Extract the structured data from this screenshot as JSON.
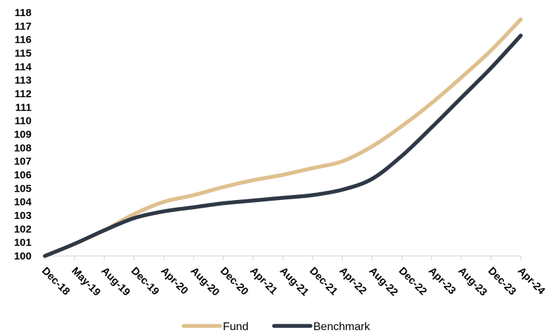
{
  "chart_data": {
    "type": "line",
    "title": "",
    "xlabel": "",
    "ylabel": "",
    "ylim": [
      100,
      118
    ],
    "yticks": [
      "100",
      "101",
      "102",
      "103",
      "104",
      "105",
      "106",
      "107",
      "108",
      "109",
      "110",
      "111",
      "112",
      "113",
      "114",
      "115",
      "116",
      "117",
      "118"
    ],
    "categories": [
      "Dec-18",
      "May-19",
      "Aug-19",
      "Dec-19",
      "Apr-20",
      "Aug-20",
      "Dec-20",
      "Apr-21",
      "Aug-21",
      "Dec-21",
      "Apr-22",
      "Aug-22",
      "Dec-22",
      "Apr-23",
      "Aug-23",
      "Dec-23",
      "Apr-24"
    ],
    "grid": false,
    "legend_position": "bottom",
    "series": [
      {
        "name": "Fund",
        "color": "#dfc08e",
        "values": [
          100.0,
          100.9,
          101.9,
          103.1,
          104.0,
          104.5,
          105.1,
          105.6,
          106.0,
          106.5,
          107.0,
          108.1,
          109.6,
          111.3,
          113.2,
          115.2,
          117.5
        ]
      },
      {
        "name": "Benchmark",
        "color": "#2e3846",
        "values": [
          100.0,
          100.9,
          101.9,
          102.8,
          103.3,
          103.6,
          103.9,
          104.1,
          104.3,
          104.5,
          104.9,
          105.7,
          107.4,
          109.5,
          111.7,
          113.9,
          116.3
        ]
      }
    ]
  }
}
